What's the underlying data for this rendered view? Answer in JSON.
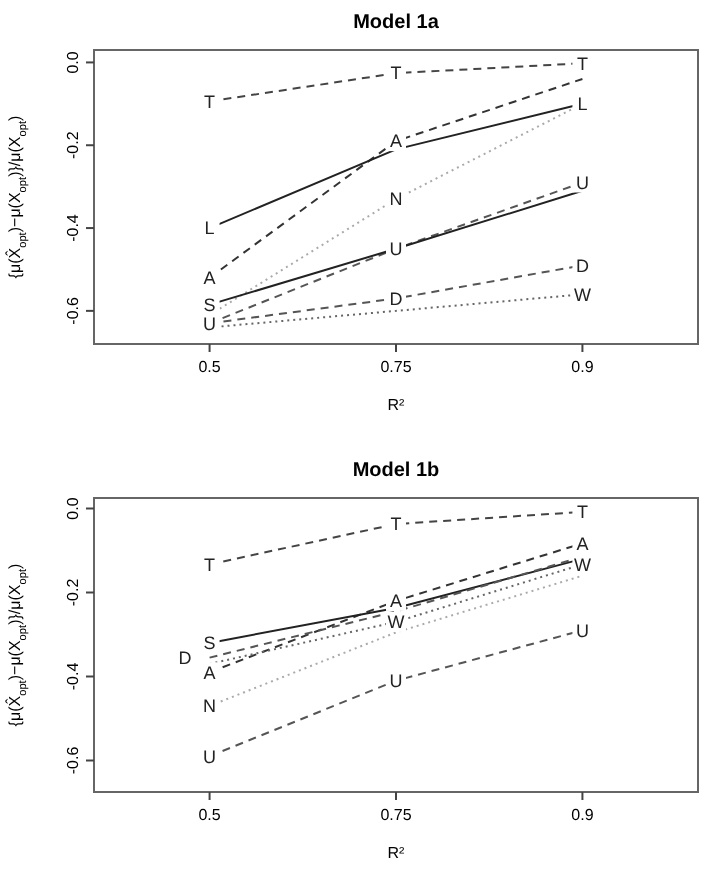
{
  "chart_data": [
    {
      "type": "line",
      "title": "Model 1a",
      "xlabel": "R²",
      "ylabel": "{μ(X̂$_{opt}$)−μ(X$_{opt}$)}/μ(X$_{opt}$)",
      "categories": [
        "0.5",
        "0.75",
        "0.9"
      ],
      "ylim": [
        -0.68,
        0.03
      ],
      "yticks": [
        {
          "value": 0,
          "label": "0.0"
        },
        -0.2,
        -0.4,
        -0.6
      ],
      "series": [
        {
          "name": "T",
          "color": "#444444",
          "line_style": "dashed",
          "values": [
            -0.094,
            -0.026,
            -0.002
          ]
        },
        {
          "name": "A",
          "color": "#333333",
          "line_style": "dashed",
          "values": [
            -0.52,
            -0.19,
            -0.04
          ]
        },
        {
          "name": "L",
          "color": "#222222",
          "line_style": "solid",
          "values": [
            -0.4,
            -0.21,
            -0.1
          ]
        },
        {
          "name": "N",
          "color": "#aaaaaa",
          "line_style": "dotted",
          "values": [
            -0.61,
            -0.33,
            -0.1
          ]
        },
        {
          "name": "U",
          "color": "#555555",
          "line_style": "dashed",
          "values": [
            -0.63,
            -0.45,
            -0.29
          ]
        },
        {
          "name": "S",
          "color": "#222222",
          "line_style": "solid",
          "values": [
            -0.585,
            -0.45,
            -0.31
          ]
        },
        {
          "name": "D",
          "color": "#555555",
          "line_style": "dashed",
          "values": [
            -0.63,
            -0.57,
            -0.49
          ]
        },
        {
          "name": "W",
          "color": "#666666",
          "line_style": "dotted",
          "values": [
            -0.64,
            -0.6,
            -0.56
          ]
        }
      ]
    },
    {
      "type": "line",
      "title": "Model 1b",
      "xlabel": "R²",
      "ylabel": "{μ(X̂$_{opt}$)−μ(X$_{opt}$)}/μ(X$_{opt}$)",
      "categories": [
        "0.5",
        "0.75",
        "0.9"
      ],
      "ylim": [
        -0.675,
        0.025
      ],
      "yticks": [
        {
          "value": 0,
          "label": "0.0"
        },
        -0.2,
        -0.4,
        -0.6
      ],
      "series": [
        {
          "name": "T",
          "color": "#444444",
          "line_style": "dashed",
          "values": [
            -0.133,
            -0.037,
            -0.008
          ]
        },
        {
          "name": "A",
          "color": "#333333",
          "line_style": "dashed",
          "values": [
            -0.39,
            -0.22,
            -0.083
          ]
        },
        {
          "name": "S",
          "color": "#222222",
          "line_style": "solid",
          "values": [
            -0.32,
            -0.237,
            -0.12
          ]
        },
        {
          "name": "D",
          "color": "#555555",
          "line_style": "dashed",
          "values": [
            -0.355,
            -0.245,
            -0.115
          ]
        },
        {
          "name": "W",
          "color": "#666666",
          "line_style": "dotted",
          "values": [
            -0.37,
            -0.27,
            -0.133
          ]
        },
        {
          "name": "N",
          "color": "#aaaaaa",
          "line_style": "dotted",
          "values": [
            -0.47,
            -0.295,
            -0.16
          ]
        },
        {
          "name": "U",
          "color": "#555555",
          "line_style": "dashed",
          "values": [
            -0.59,
            -0.41,
            -0.29
          ]
        }
      ]
    }
  ]
}
